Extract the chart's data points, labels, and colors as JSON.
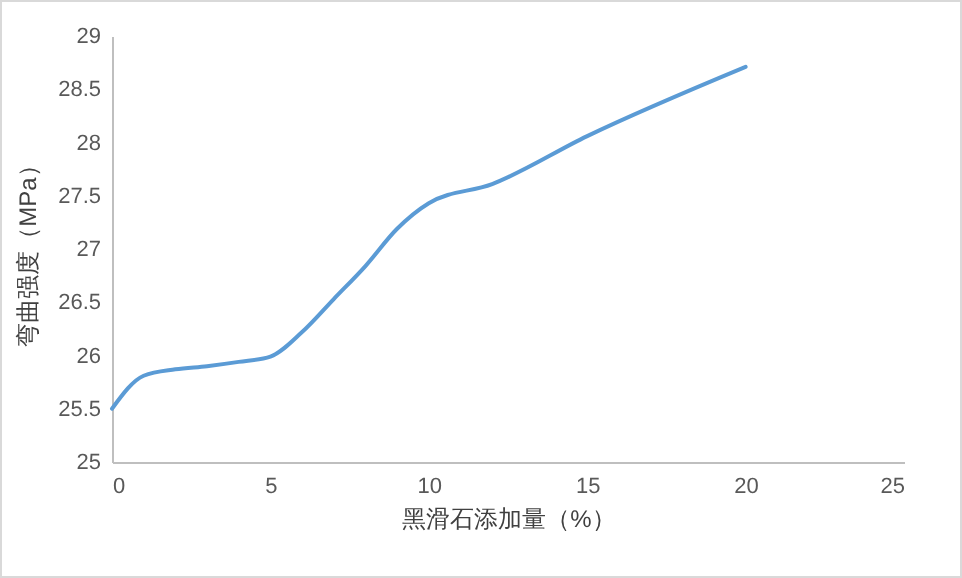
{
  "chart_data": {
    "type": "line",
    "xlabel": "黑滑石添加量（%）",
    "ylabel": "弯曲强度（MPa）",
    "x": [
      0,
      1,
      2,
      3,
      4,
      5,
      6,
      7,
      8,
      9,
      10,
      12,
      15,
      20
    ],
    "series": [
      {
        "color": "#5b9bd5",
        "values": [
          25.5,
          25.81,
          25.87,
          25.9,
          25.94,
          25.99,
          26.22,
          26.53,
          26.84,
          27.19,
          27.43,
          27.61,
          28.06,
          28.71
        ]
      }
    ],
    "xlim": [
      0,
      25
    ],
    "xticks": [
      0,
      5,
      10,
      15,
      20,
      25
    ],
    "ylim": [
      25,
      29
    ],
    "yticks": [
      25,
      25.5,
      26,
      26.5,
      27,
      27.5,
      28,
      28.5,
      29
    ],
    "grid": false,
    "legend": false,
    "marker": "none",
    "line_style": "solid"
  }
}
